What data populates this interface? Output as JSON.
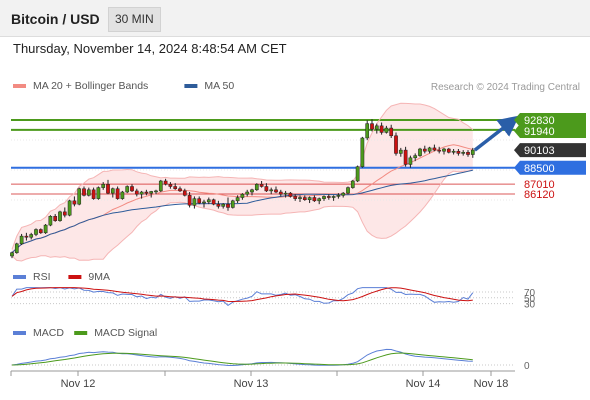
{
  "header": {
    "title": "Bitcoin / USD",
    "interval": "30 MIN"
  },
  "datetime": "Thursday, November 14, 2024 8:48:54 AM CET",
  "copyright": "Research © 2024 Trading Central",
  "legend_main": [
    {
      "label": "MA 20 + Bollinger Bands",
      "color": "#f28b82"
    },
    {
      "label": "MA 50",
      "color": "#2e5c9a"
    }
  ],
  "legend_rsi": [
    {
      "label": "RSI",
      "color": "#5b7fd6"
    },
    {
      "label": "9MA",
      "color": "#cc1111"
    }
  ],
  "legend_macd": [
    {
      "label": "MACD",
      "color": "#5b7fd6"
    },
    {
      "label": "MACD Signal",
      "color": "#4c9a1c"
    }
  ],
  "chart_data": {
    "type": "candlestick",
    "price_levels": [
      {
        "label": "92830",
        "value": 92830,
        "kind": "resistance",
        "color": "#4c9a1c"
      },
      {
        "label": "91940",
        "value": 91940,
        "kind": "resistance",
        "color": "#4c9a1c"
      },
      {
        "label": "90103",
        "value": 90103,
        "kind": "last",
        "color": "#333333"
      },
      {
        "label": "88500",
        "value": 88500,
        "kind": "pivot",
        "color": "#2f6fe0"
      },
      {
        "label": "87010",
        "value": 87010,
        "kind": "support",
        "color": "#cc1111"
      },
      {
        "label": "86120",
        "value": 86120,
        "kind": "support",
        "color": "#cc1111"
      }
    ],
    "x_labels": [
      "Nov 12",
      "Nov 13",
      "Nov 14",
      "Nov 18"
    ],
    "rsi": {
      "levels": [
        70,
        50,
        30
      ],
      "level_labels": [
        "70",
        "50",
        "30"
      ]
    },
    "macd": {
      "zero_label": "0"
    },
    "candles": [
      [
        80500,
        80900,
        80300,
        80800
      ],
      [
        80800,
        81700,
        80700,
        81600
      ],
      [
        81600,
        82500,
        81500,
        82300
      ],
      [
        82300,
        82600,
        81900,
        82200
      ],
      [
        82200,
        82600,
        82000,
        82450
      ],
      [
        82450,
        83000,
        82300,
        82900
      ],
      [
        82900,
        83000,
        82500,
        82600
      ],
      [
        82600,
        83400,
        82500,
        83300
      ],
      [
        83300,
        84200,
        83200,
        84100
      ],
      [
        84100,
        84300,
        83600,
        83700
      ],
      [
        83700,
        84600,
        83600,
        84500
      ],
      [
        84500,
        84900,
        84000,
        84200
      ],
      [
        84200,
        85600,
        84100,
        85500
      ],
      [
        85500,
        85900,
        85000,
        85200
      ],
      [
        85200,
        86700,
        85100,
        86600
      ],
      [
        86600,
        86800,
        85900,
        86000
      ],
      [
        86000,
        86700,
        85900,
        86500
      ],
      [
        86500,
        86700,
        85600,
        85700
      ],
      [
        85700,
        86800,
        85600,
        86700
      ],
      [
        86700,
        87200,
        86500,
        87000
      ],
      [
        87000,
        87400,
        86100,
        86200
      ],
      [
        86200,
        86700,
        85800,
        86600
      ],
      [
        86600,
        86800,
        85600,
        85700
      ],
      [
        85700,
        86400,
        85600,
        86300
      ],
      [
        86300,
        86900,
        86200,
        86800
      ],
      [
        86800,
        87000,
        86300,
        86400
      ],
      [
        86400,
        86600,
        85900,
        86100
      ],
      [
        86100,
        86400,
        85700,
        86300
      ],
      [
        86300,
        86500,
        86000,
        86200
      ],
      [
        86200,
        86400,
        85800,
        86350
      ],
      [
        86350,
        86500,
        86100,
        86400
      ],
      [
        86400,
        87400,
        86300,
        87300
      ],
      [
        87300,
        87500,
        86900,
        87000
      ],
      [
        87000,
        87200,
        86600,
        86800
      ],
      [
        86800,
        87100,
        86500,
        86600
      ],
      [
        86600,
        86800,
        86300,
        86400
      ],
      [
        86400,
        86600,
        85900,
        86000
      ],
      [
        86000,
        86300,
        84900,
        85100
      ],
      [
        85100,
        85900,
        84800,
        85700
      ],
      [
        85700,
        85900,
        85200,
        85300
      ],
      [
        85300,
        85600,
        84900,
        85400
      ],
      [
        85400,
        85800,
        85200,
        85600
      ],
      [
        85600,
        85700,
        85100,
        85200
      ],
      [
        85200,
        85500,
        84800,
        85000
      ],
      [
        85000,
        85300,
        84800,
        85200
      ],
      [
        85200,
        85800,
        84600,
        84900
      ],
      [
        84900,
        85600,
        84800,
        85500
      ],
      [
        85500,
        86000,
        85300,
        85800
      ],
      [
        85800,
        86200,
        85600,
        86100
      ],
      [
        86100,
        86500,
        85900,
        86300
      ],
      [
        86300,
        86600,
        86000,
        86500
      ],
      [
        86500,
        87100,
        86400,
        87000
      ],
      [
        87000,
        87300,
        86700,
        86800
      ],
      [
        86800,
        87100,
        86300,
        86400
      ],
      [
        86400,
        86700,
        86100,
        86500
      ],
      [
        86500,
        86800,
        86200,
        86300
      ],
      [
        86300,
        86500,
        85900,
        86100
      ],
      [
        86100,
        86400,
        85800,
        86200
      ],
      [
        86200,
        86300,
        85800,
        85900
      ],
      [
        85900,
        86100,
        85500,
        85700
      ],
      [
        85700,
        86000,
        85400,
        85800
      ],
      [
        85800,
        86000,
        85500,
        85600
      ],
      [
        85600,
        85900,
        85300,
        85800
      ],
      [
        85800,
        86000,
        85400,
        85500
      ],
      [
        85500,
        85800,
        85200,
        85700
      ],
      [
        85700,
        86000,
        85500,
        85900
      ],
      [
        85900,
        86100,
        85600,
        85800
      ],
      [
        85800,
        86000,
        85500,
        85900
      ],
      [
        85900,
        86200,
        85700,
        86000
      ],
      [
        86000,
        86300,
        85800,
        86200
      ],
      [
        86200,
        86800,
        86100,
        86700
      ],
      [
        86700,
        87400,
        86600,
        87300
      ],
      [
        87300,
        88700,
        87200,
        88600
      ],
      [
        88600,
        91300,
        88500,
        91200
      ],
      [
        91200,
        92800,
        91000,
        92500
      ],
      [
        92500,
        92900,
        91800,
        92000
      ],
      [
        92000,
        92500,
        91600,
        92300
      ],
      [
        92300,
        92600,
        91500,
        91700
      ],
      [
        91700,
        92300,
        91600,
        92100
      ],
      [
        92100,
        92400,
        91200,
        91400
      ],
      [
        91400,
        91700,
        89600,
        89800
      ],
      [
        89800,
        90300,
        89500,
        90100
      ],
      [
        90100,
        90400,
        88600,
        88800
      ],
      [
        88800,
        89600,
        88500,
        89400
      ],
      [
        89400,
        89800,
        89100,
        89600
      ],
      [
        89600,
        90300,
        89500,
        90200
      ],
      [
        90200,
        90500,
        89800,
        90000
      ],
      [
        90000,
        90400,
        89800,
        90300
      ],
      [
        90300,
        90600,
        90000,
        90100
      ],
      [
        90100,
        90400,
        89800,
        90000
      ],
      [
        90000,
        90300,
        89700,
        90200
      ],
      [
        90200,
        90300,
        89800,
        89900
      ],
      [
        89900,
        90200,
        89700,
        90000
      ],
      [
        90000,
        90200,
        89600,
        89800
      ],
      [
        89800,
        90100,
        89600,
        89900
      ],
      [
        89900,
        90100,
        89500,
        89700
      ],
      [
        89700,
        90300,
        89400,
        90103
      ]
    ]
  }
}
